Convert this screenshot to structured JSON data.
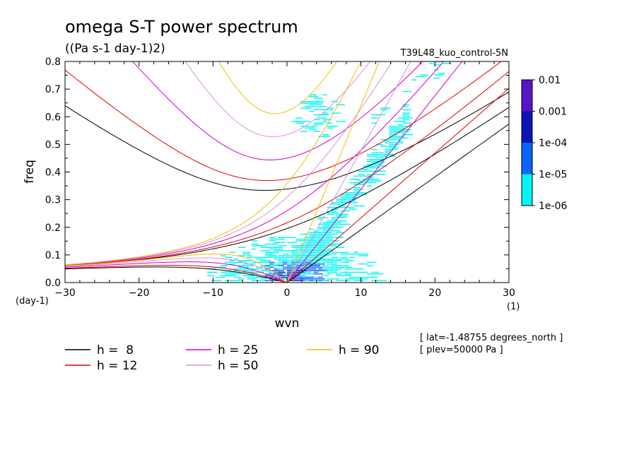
{
  "chart_data": {
    "type": "heatmap",
    "title": "omega S-T power spectrum",
    "subtitle": "((Pa s-1 day-1)2)",
    "run_label": "T39L48_kuo_control-5N",
    "xlabel": "wvn",
    "ylabel": "freq",
    "x_unit": "(1)",
    "y_unit": "(day-1)",
    "xlim": [
      -30,
      30
    ],
    "ylim": [
      0,
      0.8
    ],
    "x_ticks": [
      -30,
      -20,
      -10,
      0,
      10,
      20,
      30
    ],
    "y_ticks": [
      "0.0",
      "0.1",
      "0.2",
      "0.3",
      "0.4",
      "0.5",
      "0.6",
      "0.7",
      "0.8"
    ],
    "colorbar": {
      "labels": [
        "0.01",
        "0.001",
        "1e-04",
        "1e-05",
        "1e-06"
      ],
      "colors": [
        "#5a14c8",
        "#0a14b4",
        "#0a64ff",
        "#00f5f5"
      ]
    },
    "info_lines": [
      "[ lat=-1.48755 degrees_north ]",
      "[ plev=50000 Pa ]"
    ],
    "series": [
      {
        "name": "h =  8",
        "h": 8,
        "color": "#000000"
      },
      {
        "name": "h = 12",
        "h": 12,
        "color": "#e00000"
      },
      {
        "name": "h = 25",
        "h": 25,
        "color": "#d000c8"
      },
      {
        "name": "h = 50",
        "h": 50,
        "color": "#d890e0"
      },
      {
        "name": "h = 90",
        "h": 90,
        "color": "#f0c000"
      }
    ]
  }
}
